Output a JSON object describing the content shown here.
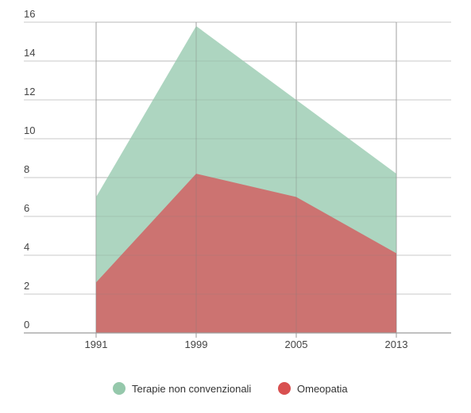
{
  "chart_data": {
    "type": "area",
    "title": "",
    "xlabel": "",
    "ylabel": "",
    "categories": [
      "1991",
      "1999",
      "2005",
      "2013"
    ],
    "ylim": [
      0,
      16
    ],
    "yticks": [
      0,
      2,
      4,
      6,
      8,
      10,
      12,
      14,
      16
    ],
    "grid": true,
    "legend": "bottom-center",
    "series": [
      {
        "name": "Terapie non convenzionali",
        "values": [
          7.0,
          15.8,
          12.0,
          8.2
        ],
        "color": "#a9d3bd"
      },
      {
        "name": "Omeopatia",
        "values": [
          2.6,
          8.2,
          7.0,
          4.1
        ],
        "color": "#cc706e"
      }
    ],
    "legend_colors": [
      "#95c8ab",
      "#d85050"
    ]
  }
}
